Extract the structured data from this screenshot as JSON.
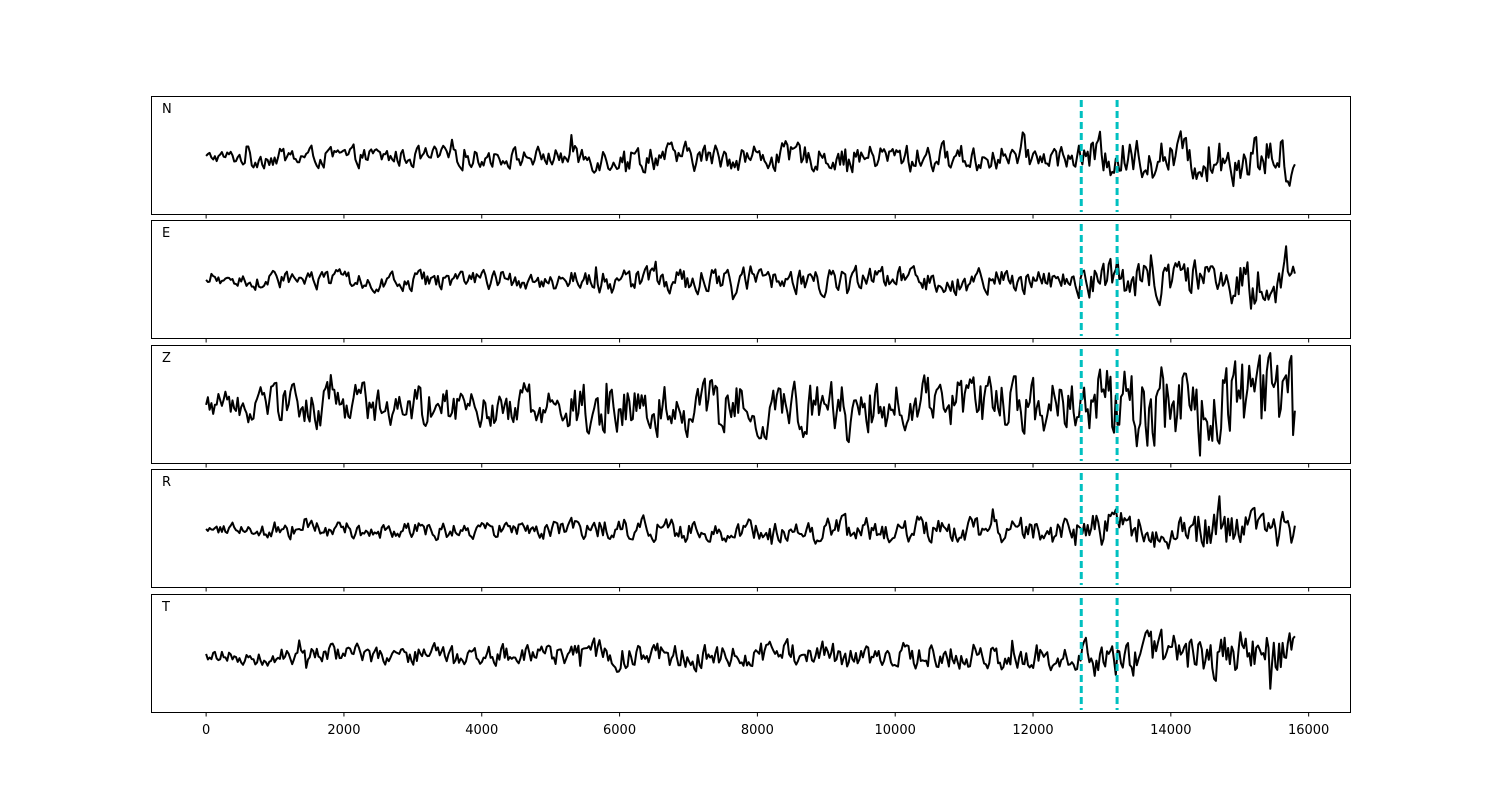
{
  "chart_data": {
    "type": "line",
    "title": "",
    "xlabel": "",
    "ylabel": "",
    "xlim": [
      -800,
      16600
    ],
    "x_ticks": [
      0,
      2000,
      4000,
      6000,
      8000,
      10000,
      12000,
      14000,
      16000
    ],
    "x_tick_labels": [
      "0",
      "2000",
      "4000",
      "6000",
      "8000",
      "10000",
      "12000",
      "14000",
      "16000"
    ],
    "sample_range": [
      0,
      15800
    ],
    "grid": false,
    "line_color": "#000000",
    "marker_color": "#00c0c0",
    "vertical_markers": [
      12700,
      13220
    ],
    "panels": [
      {
        "label": "N",
        "baseline": 0.2,
        "amplitude": 0.3
      },
      {
        "label": "E",
        "baseline": 0.35,
        "amplitude": 0.28
      },
      {
        "label": "Z",
        "baseline": 0.15,
        "amplitude": 0.52
      },
      {
        "label": "R",
        "baseline": 0.3,
        "amplitude": 0.27
      },
      {
        "label": "T",
        "baseline": 0.3,
        "amplitude": 0.3
      }
    ]
  }
}
